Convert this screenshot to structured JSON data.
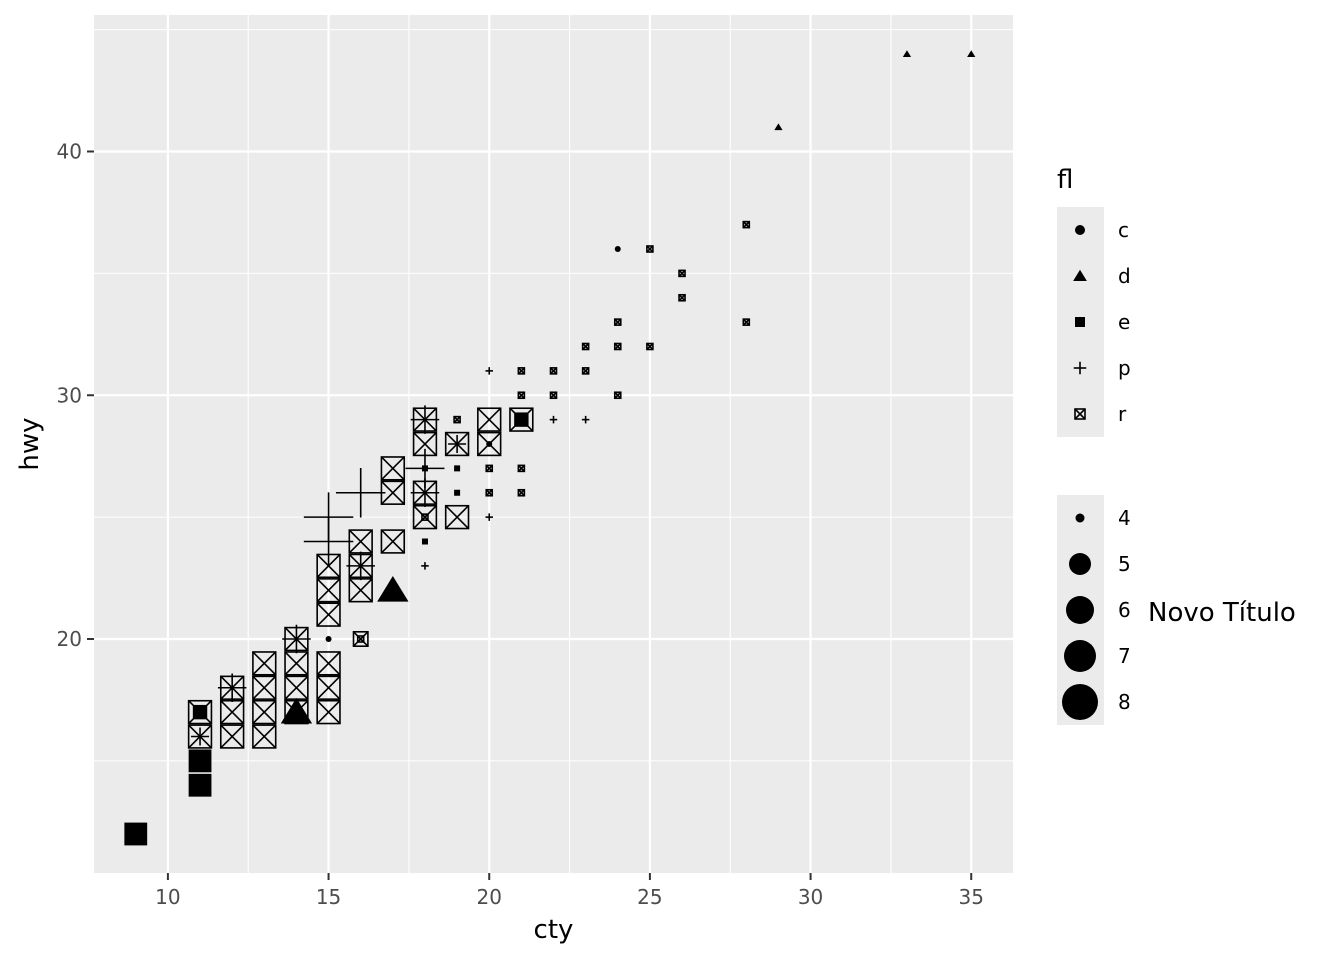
{
  "chart_data": {
    "type": "scatter",
    "title": "",
    "xlabel": "cty",
    "ylabel": "hwy",
    "xlim": [
      7.7,
      36.3
    ],
    "ylim": [
      10.4,
      45.6
    ],
    "x_ticks": [
      10,
      15,
      20,
      25,
      30,
      35
    ],
    "y_ticks": [
      20,
      30,
      40
    ],
    "grid": true,
    "legends": {
      "shape": {
        "title": "fl",
        "placement": "right",
        "entries": [
          {
            "label": "c",
            "shape": "circle"
          },
          {
            "label": "d",
            "shape": "triangle"
          },
          {
            "label": "e",
            "shape": "square"
          },
          {
            "label": "p",
            "shape": "plus"
          },
          {
            "label": "r",
            "shape": "square-cross"
          }
        ]
      },
      "size": {
        "title": "Novo Título",
        "placement": "right",
        "entries": [
          {
            "label": "4",
            "value": 4
          },
          {
            "label": "5",
            "value": 5
          },
          {
            "label": "6",
            "value": 6
          },
          {
            "label": "7",
            "value": 7
          },
          {
            "label": "8",
            "value": 8
          }
        ]
      }
    },
    "points": [
      {
        "x": 33,
        "y": 44,
        "fl": "d",
        "size": 2
      },
      {
        "x": 35,
        "y": 44,
        "fl": "d",
        "size": 2
      },
      {
        "x": 29,
        "y": 41,
        "fl": "d",
        "size": 2
      },
      {
        "x": 28,
        "y": 37,
        "fl": "r",
        "size": 2
      },
      {
        "x": 24,
        "y": 36,
        "fl": "c",
        "size": 2
      },
      {
        "x": 25,
        "y": 36,
        "fl": "r",
        "size": 2
      },
      {
        "x": 26,
        "y": 35,
        "fl": "r",
        "size": 2
      },
      {
        "x": 26,
        "y": 34,
        "fl": "r",
        "size": 2
      },
      {
        "x": 24,
        "y": 33,
        "fl": "r",
        "size": 2
      },
      {
        "x": 28,
        "y": 33,
        "fl": "r",
        "size": 2
      },
      {
        "x": 23,
        "y": 32,
        "fl": "r",
        "size": 2
      },
      {
        "x": 24,
        "y": 32,
        "fl": "r",
        "size": 2
      },
      {
        "x": 25,
        "y": 32,
        "fl": "r",
        "size": 2
      },
      {
        "x": 20,
        "y": 31,
        "fl": "p",
        "size": 2
      },
      {
        "x": 21,
        "y": 31,
        "fl": "r",
        "size": 2
      },
      {
        "x": 22,
        "y": 31,
        "fl": "r",
        "size": 2
      },
      {
        "x": 23,
        "y": 31,
        "fl": "r",
        "size": 2
      },
      {
        "x": 21,
        "y": 30,
        "fl": "r",
        "size": 2
      },
      {
        "x": 22,
        "y": 30,
        "fl": "r",
        "size": 2
      },
      {
        "x": 24,
        "y": 30,
        "fl": "r",
        "size": 2
      },
      {
        "x": 19,
        "y": 29,
        "fl": "r",
        "size": 2
      },
      {
        "x": 22,
        "y": 29,
        "fl": "p",
        "size": 2
      },
      {
        "x": 23,
        "y": 29,
        "fl": "p",
        "size": 2
      },
      {
        "x": 18,
        "y": 29,
        "fl": "r",
        "size": 4
      },
      {
        "x": 18,
        "y": 29,
        "fl": "p",
        "size": 4
      },
      {
        "x": 20,
        "y": 29,
        "fl": "r",
        "size": 4
      },
      {
        "x": 21,
        "y": 29,
        "fl": "r",
        "size": 4
      },
      {
        "x": 21,
        "y": 29,
        "fl": "e",
        "size": 3
      },
      {
        "x": 18,
        "y": 28,
        "fl": "r",
        "size": 4
      },
      {
        "x": 19,
        "y": 28,
        "fl": "r",
        "size": 4
      },
      {
        "x": 19,
        "y": 28,
        "fl": "p",
        "size": 3
      },
      {
        "x": 20,
        "y": 28,
        "fl": "r",
        "size": 4
      },
      {
        "x": 20,
        "y": 28,
        "fl": "c",
        "size": 2
      },
      {
        "x": 18,
        "y": 27,
        "fl": "e",
        "size": 2
      },
      {
        "x": 19,
        "y": 27,
        "fl": "e",
        "size": 2
      },
      {
        "x": 20,
        "y": 27,
        "fl": "r",
        "size": 2
      },
      {
        "x": 21,
        "y": 27,
        "fl": "r",
        "size": 2
      },
      {
        "x": 17,
        "y": 27,
        "fl": "r",
        "size": 4
      },
      {
        "x": 18,
        "y": 27,
        "fl": "p",
        "size": 5
      },
      {
        "x": 16,
        "y": 26,
        "fl": "p",
        "size": 6
      },
      {
        "x": 17,
        "y": 26,
        "fl": "r",
        "size": 4
      },
      {
        "x": 18,
        "y": 26,
        "fl": "r",
        "size": 4
      },
      {
        "x": 18,
        "y": 26,
        "fl": "p",
        "size": 4
      },
      {
        "x": 19,
        "y": 26,
        "fl": "e",
        "size": 2
      },
      {
        "x": 20,
        "y": 26,
        "fl": "r",
        "size": 2
      },
      {
        "x": 21,
        "y": 26,
        "fl": "r",
        "size": 2
      },
      {
        "x": 15,
        "y": 25,
        "fl": "p",
        "size": 6
      },
      {
        "x": 18,
        "y": 25,
        "fl": "r",
        "size": 4
      },
      {
        "x": 18,
        "y": 25,
        "fl": "r",
        "size": 2
      },
      {
        "x": 19,
        "y": 25,
        "fl": "r",
        "size": 4
      },
      {
        "x": 20,
        "y": 25,
        "fl": "p",
        "size": 2
      },
      {
        "x": 15,
        "y": 24,
        "fl": "p",
        "size": 6
      },
      {
        "x": 16,
        "y": 24,
        "fl": "r",
        "size": 4
      },
      {
        "x": 17,
        "y": 24,
        "fl": "r",
        "size": 4
      },
      {
        "x": 18,
        "y": 24,
        "fl": "e",
        "size": 2
      },
      {
        "x": 15,
        "y": 23,
        "fl": "r",
        "size": 4
      },
      {
        "x": 16,
        "y": 23,
        "fl": "r",
        "size": 4
      },
      {
        "x": 16,
        "y": 23,
        "fl": "p",
        "size": 4
      },
      {
        "x": 18,
        "y": 23,
        "fl": "p",
        "size": 2
      },
      {
        "x": 17,
        "y": 22,
        "fl": "d",
        "size": 4
      },
      {
        "x": 15,
        "y": 22,
        "fl": "r",
        "size": 4
      },
      {
        "x": 16,
        "y": 22,
        "fl": "r",
        "size": 4
      },
      {
        "x": 15,
        "y": 21,
        "fl": "r",
        "size": 4
      },
      {
        "x": 15,
        "y": 20,
        "fl": "c",
        "size": 2
      },
      {
        "x": 16,
        "y": 20,
        "fl": "r",
        "size": 3
      },
      {
        "x": 16,
        "y": 20,
        "fl": "r",
        "size": 2
      },
      {
        "x": 14,
        "y": 20,
        "fl": "r",
        "size": 4
      },
      {
        "x": 14,
        "y": 20,
        "fl": "p",
        "size": 4
      },
      {
        "x": 14,
        "y": 19,
        "fl": "r",
        "size": 4
      },
      {
        "x": 15,
        "y": 19,
        "fl": "r",
        "size": 4
      },
      {
        "x": 13,
        "y": 19,
        "fl": "r",
        "size": 4
      },
      {
        "x": 12,
        "y": 18,
        "fl": "r",
        "size": 4
      },
      {
        "x": 12,
        "y": 18,
        "fl": "p",
        "size": 4
      },
      {
        "x": 13,
        "y": 18,
        "fl": "r",
        "size": 4
      },
      {
        "x": 14,
        "y": 18,
        "fl": "r",
        "size": 4
      },
      {
        "x": 15,
        "y": 18,
        "fl": "r",
        "size": 4
      },
      {
        "x": 11,
        "y": 17,
        "fl": "r",
        "size": 4
      },
      {
        "x": 11,
        "y": 17,
        "fl": "e",
        "size": 3
      },
      {
        "x": 12,
        "y": 17,
        "fl": "r",
        "size": 4
      },
      {
        "x": 13,
        "y": 17,
        "fl": "r",
        "size": 4
      },
      {
        "x": 14,
        "y": 17,
        "fl": "d",
        "size": 4
      },
      {
        "x": 14,
        "y": 17,
        "fl": "r",
        "size": 4
      },
      {
        "x": 15,
        "y": 17,
        "fl": "r",
        "size": 4
      },
      {
        "x": 11,
        "y": 16,
        "fl": "r",
        "size": 4
      },
      {
        "x": 11,
        "y": 16,
        "fl": "p",
        "size": 3
      },
      {
        "x": 12,
        "y": 16,
        "fl": "r",
        "size": 4
      },
      {
        "x": 13,
        "y": 16,
        "fl": "r",
        "size": 4
      },
      {
        "x": 11,
        "y": 15,
        "fl": "e",
        "size": 4
      },
      {
        "x": 11,
        "y": 15,
        "fl": "p",
        "size": 3
      },
      {
        "x": 11,
        "y": 14,
        "fl": "e",
        "size": 4
      },
      {
        "x": 11,
        "y": 14,
        "fl": "p",
        "size": 3
      },
      {
        "x": 9,
        "y": 12,
        "fl": "e",
        "size": 4
      }
    ]
  }
}
